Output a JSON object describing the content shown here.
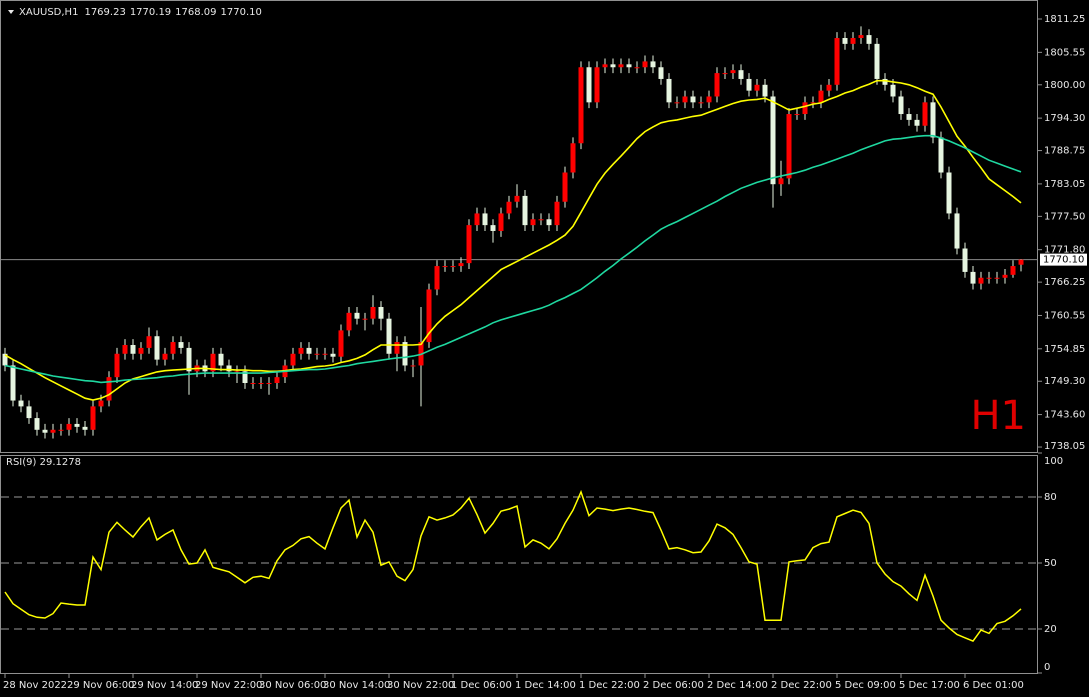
{
  "chart_data": [
    {
      "type": "candlestick",
      "title": "XAUUSD,H1",
      "ohlc_text": [
        "1769.23",
        "1770.19",
        "1768.09",
        "1770.10"
      ],
      "annotation": "H1",
      "up_color": "#ff0000",
      "down_color": "#e6f5e0",
      "wick_color": "#e6f5e0",
      "annotation_color": "#e00000",
      "categories": [
        "28 Nov 2022",
        null,
        null,
        null,
        null,
        null,
        null,
        null,
        "29 Nov 06:00",
        null,
        null,
        null,
        null,
        null,
        null,
        null,
        "29 Nov 14:00",
        null,
        null,
        null,
        null,
        null,
        null,
        null,
        "29 Nov 22:00",
        null,
        null,
        null,
        null,
        null,
        null,
        null,
        "30 Nov 06:00",
        null,
        null,
        null,
        null,
        null,
        null,
        null,
        "30 Nov 14:00",
        null,
        null,
        null,
        null,
        null,
        null,
        null,
        "30 Nov 22:00",
        null,
        null,
        null,
        null,
        null,
        null,
        null,
        "1 Dec 06:00",
        null,
        null,
        null,
        null,
        null,
        null,
        null,
        "1 Dec 14:00",
        null,
        null,
        null,
        null,
        null,
        null,
        null,
        "1 Dec 22:00",
        null,
        null,
        null,
        null,
        null,
        null,
        null,
        "2 Dec 06:00",
        null,
        null,
        null,
        null,
        null,
        null,
        null,
        "2 Dec 14:00",
        null,
        null,
        null,
        null,
        null,
        null,
        null,
        "2 Dec 22:00",
        null,
        null,
        null,
        null,
        null,
        null,
        null,
        "5 Dec 09:00",
        null,
        null,
        null,
        null,
        null,
        null,
        null,
        "5 Dec 17:00",
        null,
        null,
        null,
        null,
        null,
        null,
        null,
        "6 Dec 01:00",
        null,
        null,
        null,
        null,
        null,
        null,
        null
      ],
      "open": [
        1754,
        1752,
        1746,
        1745,
        1743,
        1741,
        1740.5,
        1741,
        1741,
        1742,
        1741.5,
        1741,
        1745,
        1746,
        1750,
        1754,
        1755.5,
        1754,
        1755,
        1757,
        1753,
        1754,
        1756,
        1755,
        1751,
        1752,
        1751,
        1754,
        1752,
        1751,
        1751,
        1749,
        1749,
        1749,
        1749,
        1750,
        1752,
        1754,
        1755,
        1754,
        1754,
        1754,
        1753.5,
        1758,
        1761,
        1760,
        1760,
        1762,
        1760,
        1754,
        1756,
        1752,
        1752,
        1756,
        1765,
        1769,
        1769,
        1769,
        1769.5,
        1776,
        1778,
        1776,
        1775,
        1778,
        1780,
        1781,
        1776,
        1777,
        1777,
        1776,
        1780,
        1785,
        1790,
        1803,
        1797,
        1803,
        1803.5,
        1803,
        1803.5,
        1803,
        1803,
        1804,
        1803,
        1801,
        1797,
        1797,
        1798,
        1797,
        1797,
        1798,
        1802,
        1802,
        1802.5,
        1801,
        1799,
        1800,
        1798,
        1783,
        1784,
        1795,
        1795,
        1797,
        1797,
        1799,
        1800,
        1808,
        1807,
        1808,
        1808.5,
        1807,
        1801,
        1800,
        1798,
        1795,
        1794,
        1793,
        1797,
        1791,
        1785,
        1778,
        1772,
        1768,
        1766,
        1767,
        1767,
        1767,
        1767.5,
        1769.23
      ],
      "high": [
        1755,
        1753,
        1747,
        1746,
        1744,
        1742,
        1742,
        1742,
        1743,
        1743,
        1742.5,
        1746,
        1747,
        1751,
        1755,
        1756.5,
        1756.5,
        1756,
        1758.5,
        1758,
        1755,
        1757,
        1757,
        1756,
        1753,
        1753,
        1755,
        1755,
        1753,
        1752,
        1752,
        1750,
        1750,
        1750,
        1751,
        1753,
        1755,
        1756,
        1756,
        1755,
        1755,
        1755,
        1759,
        1762,
        1762,
        1761,
        1764,
        1763,
        1761,
        1757,
        1757,
        1753,
        1762,
        1766,
        1770,
        1770,
        1770,
        1770.5,
        1777,
        1779,
        1779,
        1777,
        1779,
        1781,
        1783,
        1782,
        1778,
        1778,
        1778,
        1781,
        1786,
        1791,
        1804,
        1804,
        1804,
        1804.5,
        1804.5,
        1804.5,
        1804.5,
        1804,
        1805,
        1805,
        1804,
        1802,
        1798,
        1799,
        1799,
        1798,
        1799,
        1803,
        1803,
        1803.5,
        1803.5,
        1802,
        1801,
        1801,
        1799,
        1787,
        1796,
        1796,
        1798,
        1798,
        1800,
        1801,
        1809,
        1809,
        1809,
        1810,
        1809.5,
        1808,
        1802,
        1801,
        1799,
        1796,
        1795,
        1798,
        1798,
        1792,
        1786,
        1779,
        1773,
        1769,
        1768,
        1768,
        1768,
        1768.5,
        1770,
        1770.19
      ],
      "low": [
        1751,
        1745,
        1744,
        1742,
        1740,
        1739.5,
        1739.5,
        1740,
        1740,
        1740.5,
        1740,
        1740,
        1744,
        1745,
        1749,
        1753,
        1753,
        1753,
        1754,
        1752,
        1752,
        1753,
        1754,
        1747,
        1750,
        1750,
        1750,
        1751,
        1750,
        1749,
        1748,
        1748,
        1748,
        1747,
        1748,
        1749,
        1751,
        1753,
        1753,
        1753,
        1753,
        1752.5,
        1752.5,
        1757,
        1759,
        1758,
        1759,
        1758,
        1753,
        1751,
        1751,
        1750,
        1745,
        1755,
        1764,
        1768,
        1768,
        1768,
        1768.5,
        1775,
        1775,
        1773,
        1774,
        1777,
        1779,
        1775,
        1775,
        1776,
        1775,
        1775,
        1779,
        1784,
        1789,
        1796,
        1796,
        1802,
        1802,
        1802,
        1802,
        1802,
        1802,
        1802,
        1800,
        1796,
        1796,
        1796,
        1796,
        1796,
        1796,
        1797,
        1801,
        1801,
        1800,
        1798,
        1798,
        1797,
        1779,
        1781,
        1783,
        1794,
        1794,
        1796,
        1796,
        1798,
        1799,
        1806,
        1806,
        1807,
        1806,
        1800,
        1799,
        1797,
        1794,
        1793,
        1792,
        1792,
        1790,
        1784,
        1777,
        1771,
        1767,
        1765,
        1765,
        1766,
        1766,
        1766,
        1767,
        1768.09
      ],
      "close": [
        1752,
        1746,
        1745,
        1743,
        1741,
        1740.5,
        1741,
        1741,
        1742,
        1741.5,
        1741,
        1745,
        1746,
        1750,
        1754,
        1755.5,
        1754,
        1755,
        1757,
        1753,
        1754,
        1756,
        1755,
        1751,
        1752,
        1751,
        1754,
        1752,
        1751,
        1751,
        1749,
        1749,
        1749,
        1749,
        1750,
        1752,
        1754,
        1755,
        1754,
        1754,
        1754,
        1753.5,
        1758,
        1761,
        1760,
        1760,
        1762,
        1760,
        1754,
        1756,
        1752,
        1752,
        1756,
        1765,
        1769,
        1769,
        1769,
        1769.5,
        1776,
        1778,
        1776,
        1775,
        1778,
        1780,
        1781,
        1776,
        1777,
        1777,
        1776,
        1780,
        1785,
        1790,
        1803,
        1797,
        1803,
        1803.5,
        1803,
        1803.5,
        1803,
        1803,
        1804,
        1803,
        1801,
        1797,
        1797,
        1798,
        1797,
        1797,
        1798,
        1802,
        1802,
        1802.5,
        1801,
        1799,
        1800,
        1798,
        1783,
        1784,
        1795,
        1795,
        1797,
        1797,
        1799,
        1800,
        1808,
        1807,
        1808,
        1808.5,
        1807,
        1801,
        1800,
        1798,
        1795,
        1794,
        1793,
        1797,
        1791,
        1785,
        1778,
        1772,
        1768,
        1766,
        1767,
        1767,
        1767,
        1767.5,
        1769,
        1770.1
      ],
      "series": [
        {
          "color": "#ffff00",
          "values": [
            1753.8,
            1753.0,
            1752.3,
            1751.5,
            1750.7,
            1749.9,
            1749.2,
            1748.5,
            1747.8,
            1747.1,
            1746.4,
            1746.1,
            1746.4,
            1747.0,
            1748.0,
            1749.0,
            1749.7,
            1750.1,
            1750.5,
            1750.9,
            1751.1,
            1751.2,
            1751.3,
            1751.4,
            1751.5,
            1751.5,
            1751.4,
            1751.3,
            1751.3,
            1751.2,
            1751.2,
            1751.1,
            1751.1,
            1751.0,
            1751.0,
            1751.1,
            1751.3,
            1751.4,
            1751.6,
            1751.8,
            1751.9,
            1752.1,
            1752.5,
            1752.8,
            1753.2,
            1753.8,
            1754.7,
            1755.5,
            1755.5,
            1755.5,
            1755.5,
            1755.5,
            1755.6,
            1757.5,
            1759.1,
            1760.4,
            1761.4,
            1762.4,
            1763.6,
            1764.8,
            1766.0,
            1767.2,
            1768.4,
            1769.1,
            1769.8,
            1770.5,
            1771.2,
            1771.9,
            1772.6,
            1773.4,
            1774.3,
            1775.8,
            1778.2,
            1780.6,
            1783.0,
            1784.9,
            1786.4,
            1787.8,
            1789.3,
            1790.8,
            1792.0,
            1792.8,
            1793.5,
            1793.8,
            1794.0,
            1794.3,
            1794.6,
            1794.8,
            1795.3,
            1795.8,
            1796.3,
            1796.8,
            1797.2,
            1797.4,
            1797.5,
            1797.7,
            1797.1,
            1796.4,
            1795.7,
            1796.0,
            1796.3,
            1796.7,
            1796.9,
            1797.5,
            1798.0,
            1798.6,
            1799.0,
            1799.6,
            1800.1,
            1800.7,
            1800.7,
            1800.5,
            1800.3,
            1800.0,
            1799.5,
            1798.9,
            1798.4,
            1796.2,
            1793.7,
            1791.2,
            1789.5,
            1787.6,
            1785.8,
            1783.9,
            1782.9,
            1781.9,
            1780.9,
            1779.8
          ]
        },
        {
          "color": "#1fd8a0",
          "values": [
            1752.0,
            1751.7,
            1751.4,
            1751.1,
            1750.8,
            1750.5,
            1750.2,
            1750.0,
            1749.8,
            1749.6,
            1749.4,
            1749.3,
            1749.1,
            1749.2,
            1749.3,
            1749.5,
            1749.6,
            1749.7,
            1749.8,
            1749.9,
            1750.1,
            1750.2,
            1750.4,
            1750.5,
            1750.6,
            1750.7,
            1750.7,
            1750.7,
            1750.7,
            1750.7,
            1750.7,
            1750.7,
            1750.7,
            1750.8,
            1750.9,
            1751.0,
            1751.1,
            1751.2,
            1751.3,
            1751.3,
            1751.4,
            1751.6,
            1751.8,
            1752.0,
            1752.3,
            1752.5,
            1752.7,
            1752.9,
            1753.1,
            1753.3,
            1753.4,
            1753.6,
            1753.9,
            1754.5,
            1755.1,
            1755.6,
            1756.2,
            1756.8,
            1757.4,
            1758.0,
            1758.6,
            1759.3,
            1759.8,
            1760.2,
            1760.6,
            1761.0,
            1761.4,
            1761.8,
            1762.3,
            1763.0,
            1763.6,
            1764.3,
            1765.0,
            1766.0,
            1767.0,
            1768.1,
            1769.1,
            1770.2,
            1771.2,
            1772.2,
            1773.3,
            1774.3,
            1775.3,
            1776.0,
            1776.6,
            1777.3,
            1778.0,
            1778.7,
            1779.4,
            1780.1,
            1780.9,
            1781.6,
            1782.3,
            1782.8,
            1783.3,
            1783.7,
            1784.1,
            1784.4,
            1784.7,
            1785.0,
            1785.4,
            1785.9,
            1786.3,
            1786.8,
            1787.3,
            1787.8,
            1788.3,
            1788.9,
            1789.4,
            1789.9,
            1790.4,
            1790.7,
            1790.8,
            1791.0,
            1791.2,
            1791.3,
            1791.3,
            1790.9,
            1790.4,
            1789.8,
            1789.2,
            1788.5,
            1787.8,
            1787.1,
            1786.6,
            1786.1,
            1785.6,
            1785.1
          ]
        }
      ],
      "current_price": {
        "value": 1770.1,
        "label": "1770.10"
      },
      "ylim": [
        1737.2,
        1814.16
      ],
      "yticks": [
        1811.25,
        1805.55,
        {
          "value": 1800,
          "label": "1800.00"
        },
        {
          "value": 1794.3,
          "label": "1794.30"
        },
        1788.75,
        1783.05,
        {
          "value": 1777.5,
          "label": "1777.50"
        },
        {
          "value": 1771.8,
          "label": "1771.80"
        },
        1766.25,
        1760.55,
        1754.85,
        {
          "value": 1749.3,
          "label": "1749.30"
        },
        {
          "value": 1743.6,
          "label": "1743.60"
        },
        1738.05
      ]
    },
    {
      "type": "line",
      "title": "RSI(9) 29.1278",
      "color": "#ffff00",
      "values": [
        36.8,
        31.5,
        29,
        26.5,
        25.3,
        25,
        27,
        31.8,
        31.3,
        30.9,
        30.9,
        52.7,
        47,
        64,
        68.5,
        65,
        61.8,
        66.5,
        70.5,
        60.5,
        63,
        65,
        56,
        49.5,
        50,
        56,
        48,
        47,
        46,
        43.5,
        41,
        43.5,
        44,
        43,
        51,
        56,
        58,
        61,
        62,
        59,
        56.4,
        66,
        75,
        78.6,
        61.8,
        69.5,
        64,
        49,
        50.5,
        44,
        42,
        47,
        62.3,
        71,
        69.5,
        70.5,
        71.8,
        75,
        79.5,
        72,
        63.6,
        68,
        73.6,
        74.5,
        75.9,
        57.3,
        60.5,
        59,
        56.4,
        61,
        68,
        74,
        82.3,
        71.5,
        75,
        74.5,
        73.8,
        74.5,
        75,
        74.3,
        73.5,
        72.9,
        65,
        56.4,
        57,
        56,
        54.7,
        55,
        60,
        67.7,
        66,
        63,
        57,
        50.5,
        49.5,
        24,
        24,
        24,
        50.5,
        51,
        51.4,
        57,
        58.8,
        59.5,
        71,
        72.5,
        74,
        73,
        68,
        50,
        45,
        41.5,
        39.5,
        36,
        33,
        44.5,
        35,
        24,
        20.5,
        17.5,
        16,
        14.5,
        19.5,
        18,
        22.5,
        23.5,
        26,
        29.1278
      ],
      "ylim": [
        0,
        100
      ],
      "yticks": [
        0,
        20,
        50,
        80,
        100
      ],
      "grid": true
    }
  ]
}
